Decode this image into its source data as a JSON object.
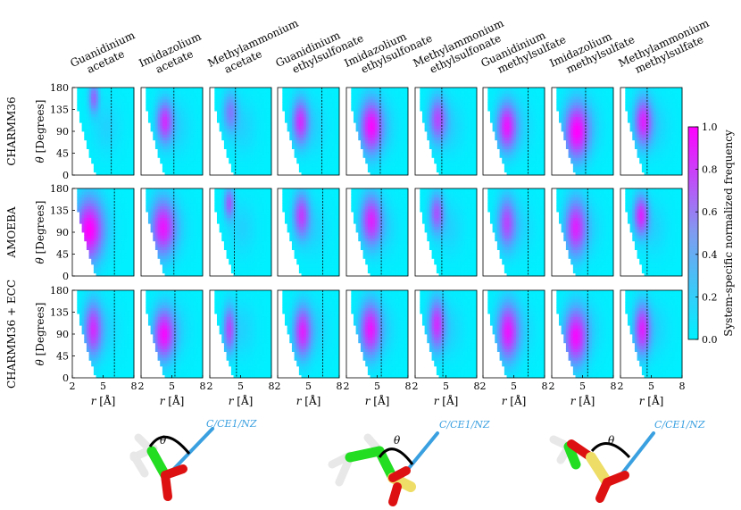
{
  "chart_data": {
    "type": "heatmap",
    "column_titles": [
      [
        "Guanidinium",
        "acetate"
      ],
      [
        "Imidazolium",
        "acetate"
      ],
      [
        "Methylammonium",
        "acetate"
      ],
      [
        "Guanidinium",
        "ethylsulfonate"
      ],
      [
        "Imidazolium",
        "ethylsulfonate"
      ],
      [
        "Methylammonium",
        "ethylsulfonate"
      ],
      [
        "Guanidinium",
        "methylsulfate"
      ],
      [
        "Imidazolium",
        "methylsulfate"
      ],
      [
        "Methylammonium",
        "methylsulfate"
      ]
    ],
    "row_titles": [
      "CHARMM36",
      "AMOEBA",
      "CHARMM36 + ECC"
    ],
    "xlabel": "r [Å]",
    "ylabel": "θ [Degrees]",
    "xlabel_parts": [
      "r",
      " [Å]"
    ],
    "ylabel_parts": [
      "θ",
      " [Degrees]"
    ],
    "xlim": [
      2,
      8
    ],
    "ylim": [
      0,
      180
    ],
    "xticks": [
      "2",
      "5",
      "8"
    ],
    "yticks": [
      "0",
      "45",
      "90",
      "135",
      "180"
    ],
    "colorbar": {
      "label": "System-specific normalized frequency",
      "ticks": [
        "0.0",
        "0.2",
        "0.4",
        "0.6",
        "0.8",
        "1.0"
      ],
      "range": [
        0,
        1
      ],
      "colors": [
        "#00f0ff",
        "#ff00ff"
      ]
    },
    "dashed_line_r": [
      [
        5.8,
        5.2,
        4.5,
        6.3,
        5.3,
        4.6,
        6.4,
        5.3,
        4.6
      ],
      [
        6.1,
        5.2,
        4.4,
        6.4,
        5.4,
        4.6,
        6.4,
        5.5,
        4.6
      ],
      [
        6.1,
        5.3,
        4.6,
        6.4,
        5.4,
        4.7,
        6.4,
        5.5,
        4.6
      ]
    ],
    "hotspots": [
      [
        {
          "r": 4.1,
          "theta": 160,
          "max": 0.55,
          "sr": 0.35,
          "st": 22
        },
        {
          "r": 4.3,
          "theta": 110,
          "max": 0.75,
          "sr": 0.55,
          "st": 30
        },
        {
          "r": 4.0,
          "theta": 130,
          "max": 0.45,
          "sr": 0.5,
          "st": 28
        },
        {
          "r": 4.2,
          "theta": 110,
          "max": 0.75,
          "sr": 0.55,
          "st": 32
        },
        {
          "r": 4.4,
          "theta": 100,
          "max": 0.9,
          "sr": 0.75,
          "st": 38
        },
        {
          "r": 4.2,
          "theta": 115,
          "max": 0.65,
          "sr": 0.6,
          "st": 32
        },
        {
          "r": 4.3,
          "theta": 100,
          "max": 0.85,
          "sr": 0.65,
          "st": 34
        },
        {
          "r": 4.4,
          "theta": 90,
          "max": 0.95,
          "sr": 0.8,
          "st": 40
        },
        {
          "r": 4.2,
          "theta": 110,
          "max": 0.8,
          "sr": 0.6,
          "st": 34
        }
      ],
      [
        {
          "r": 3.6,
          "theta": 95,
          "max": 0.95,
          "sr": 0.9,
          "st": 45
        },
        {
          "r": 4.1,
          "theta": 100,
          "max": 0.85,
          "sr": 0.8,
          "st": 40
        },
        {
          "r": 3.9,
          "theta": 150,
          "max": 0.6,
          "sr": 0.35,
          "st": 22
        },
        {
          "r": 4.3,
          "theta": 125,
          "max": 0.7,
          "sr": 0.55,
          "st": 32
        },
        {
          "r": 4.4,
          "theta": 115,
          "max": 0.8,
          "sr": 0.7,
          "st": 36
        },
        {
          "r": 4.1,
          "theta": 130,
          "max": 0.6,
          "sr": 0.5,
          "st": 28
        },
        {
          "r": 4.3,
          "theta": 110,
          "max": 0.65,
          "sr": 0.6,
          "st": 36
        },
        {
          "r": 4.3,
          "theta": 100,
          "max": 0.8,
          "sr": 0.7,
          "st": 40
        },
        {
          "r": 4.0,
          "theta": 125,
          "max": 0.8,
          "sr": 0.5,
          "st": 28
        }
      ],
      [
        {
          "r": 4.0,
          "theta": 100,
          "max": 0.75,
          "sr": 0.6,
          "st": 38
        },
        {
          "r": 4.2,
          "theta": 90,
          "max": 0.9,
          "sr": 0.7,
          "st": 36
        },
        {
          "r": 3.9,
          "theta": 100,
          "max": 0.65,
          "sr": 0.4,
          "st": 32
        },
        {
          "r": 4.4,
          "theta": 95,
          "max": 0.8,
          "sr": 0.6,
          "st": 36
        },
        {
          "r": 4.3,
          "theta": 100,
          "max": 0.85,
          "sr": 0.7,
          "st": 38
        },
        {
          "r": 4.1,
          "theta": 110,
          "max": 0.75,
          "sr": 0.55,
          "st": 36
        },
        {
          "r": 4.4,
          "theta": 95,
          "max": 0.85,
          "sr": 0.7,
          "st": 40
        },
        {
          "r": 4.3,
          "theta": 85,
          "max": 0.9,
          "sr": 0.75,
          "st": 40
        },
        {
          "r": 4.1,
          "theta": 100,
          "max": 0.8,
          "sr": 0.55,
          "st": 36
        }
      ]
    ],
    "molecule_label": "C/CE1/NZ",
    "angle_symbol": "θ"
  }
}
